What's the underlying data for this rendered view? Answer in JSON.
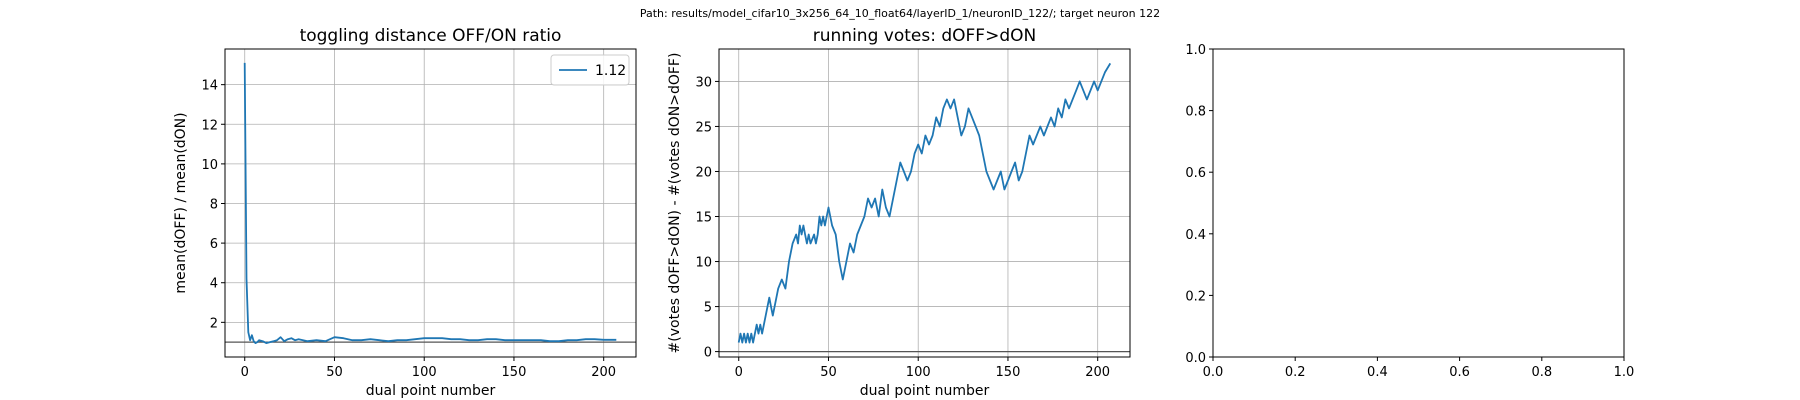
{
  "suptitle": "Path: results/model_cifar10_3x256_64_10_float64/layerID_1/neuronID_122/; target neuron 122",
  "chart_data": [
    {
      "type": "line",
      "title": "toggling distance OFF/ON ratio",
      "xlabel": "dual point number",
      "ylabel": "mean(dOFF) / mean(dON)",
      "xlim": [
        -11,
        218
      ],
      "ylim": [
        0.25,
        15.8
      ],
      "xticks": [
        0,
        50,
        100,
        150,
        200
      ],
      "yticks": [
        2,
        4,
        6,
        8,
        10,
        12,
        14
      ],
      "grid": true,
      "legend": {
        "placement": "top-right",
        "entries": [
          "1.12"
        ]
      },
      "hline": 1,
      "series": [
        {
          "name": "1.12",
          "color": "#1f77b4",
          "x": [
            0,
            1,
            2,
            3,
            4,
            5,
            6,
            7,
            8,
            10,
            12,
            14,
            16,
            18,
            20,
            22,
            24,
            26,
            28,
            30,
            35,
            40,
            45,
            50,
            55,
            60,
            65,
            70,
            75,
            80,
            85,
            90,
            95,
            100,
            105,
            110,
            115,
            120,
            125,
            130,
            135,
            140,
            145,
            150,
            155,
            160,
            165,
            170,
            175,
            180,
            185,
            190,
            195,
            200,
            207
          ],
          "y": [
            15.1,
            4.2,
            1.5,
            1.1,
            1.35,
            1.05,
            0.95,
            1.0,
            1.1,
            1.05,
            0.95,
            1.0,
            1.05,
            1.1,
            1.25,
            1.05,
            1.15,
            1.2,
            1.1,
            1.15,
            1.05,
            1.1,
            1.05,
            1.25,
            1.2,
            1.1,
            1.1,
            1.15,
            1.1,
            1.05,
            1.1,
            1.1,
            1.15,
            1.2,
            1.2,
            1.2,
            1.15,
            1.15,
            1.1,
            1.1,
            1.15,
            1.15,
            1.1,
            1.1,
            1.1,
            1.1,
            1.1,
            1.05,
            1.05,
            1.1,
            1.1,
            1.15,
            1.15,
            1.12,
            1.12
          ]
        }
      ]
    },
    {
      "type": "line",
      "title": "running votes: dOFF>dON",
      "xlabel": "dual point number",
      "ylabel": "#(votes dOFF>dON) - #(votes dON>dOFF)",
      "xlim": [
        -11,
        218
      ],
      "ylim": [
        -0.6,
        33.6
      ],
      "xticks": [
        0,
        50,
        100,
        150,
        200
      ],
      "yticks": [
        0,
        5,
        10,
        15,
        20,
        25,
        30
      ],
      "grid": true,
      "hline": 0,
      "series": [
        {
          "color": "#1f77b4",
          "x": [
            0,
            1,
            2,
            3,
            4,
            5,
            6,
            7,
            8,
            9,
            10,
            11,
            12,
            13,
            14,
            15,
            16,
            17,
            18,
            19,
            20,
            22,
            24,
            26,
            28,
            30,
            32,
            33,
            34,
            35,
            36,
            37,
            38,
            39,
            40,
            42,
            43,
            44,
            45,
            46,
            47,
            48,
            50,
            52,
            54,
            56,
            58,
            60,
            62,
            64,
            66,
            68,
            70,
            72,
            74,
            76,
            78,
            80,
            82,
            84,
            86,
            88,
            90,
            92,
            94,
            96,
            98,
            100,
            102,
            104,
            106,
            108,
            110,
            112,
            114,
            116,
            118,
            120,
            122,
            124,
            126,
            128,
            130,
            132,
            134,
            136,
            138,
            140,
            142,
            144,
            146,
            148,
            150,
            152,
            154,
            156,
            158,
            160,
            162,
            164,
            166,
            168,
            170,
            172,
            174,
            176,
            178,
            180,
            182,
            184,
            186,
            188,
            190,
            192,
            194,
            196,
            198,
            200,
            202,
            204,
            207
          ],
          "y": [
            1,
            2,
            1,
            2,
            1,
            2,
            1,
            2,
            1,
            2,
            3,
            2,
            3,
            2,
            3,
            4,
            5,
            6,
            5,
            4,
            5,
            7,
            8,
            7,
            10,
            12,
            13,
            12,
            14,
            13,
            14,
            13,
            12,
            13,
            12,
            13,
            12,
            13,
            15,
            14,
            15,
            14,
            16,
            14,
            13,
            10,
            8,
            10,
            12,
            11,
            13,
            14,
            15,
            17,
            16,
            17,
            15,
            18,
            16,
            15,
            17,
            19,
            21,
            20,
            19,
            20,
            22,
            23,
            22,
            24,
            23,
            24,
            26,
            25,
            27,
            28,
            27,
            28,
            26,
            24,
            25,
            27,
            26,
            25,
            24,
            22,
            20,
            19,
            18,
            19,
            20,
            18,
            19,
            20,
            21,
            19,
            20,
            22,
            24,
            23,
            24,
            25,
            24,
            25,
            26,
            25,
            27,
            26,
            28,
            27,
            28,
            29,
            30,
            29,
            28,
            29,
            30,
            29,
            30,
            31,
            32
          ]
        }
      ]
    },
    {
      "type": "line",
      "xlim": [
        0,
        1
      ],
      "ylim": [
        0,
        1
      ],
      "xticks": [
        0.0,
        0.2,
        0.4,
        0.6,
        0.8,
        1.0
      ],
      "yticks": [
        0.0,
        0.2,
        0.4,
        0.6,
        0.8,
        1.0
      ],
      "xtick_labels": [
        "0.0",
        "0.2",
        "0.4",
        "0.6",
        "0.8",
        "1.0"
      ],
      "ytick_labels": [
        "0.0",
        "0.2",
        "0.4",
        "0.6",
        "0.8",
        "1.0"
      ],
      "grid": false,
      "series": []
    }
  ]
}
